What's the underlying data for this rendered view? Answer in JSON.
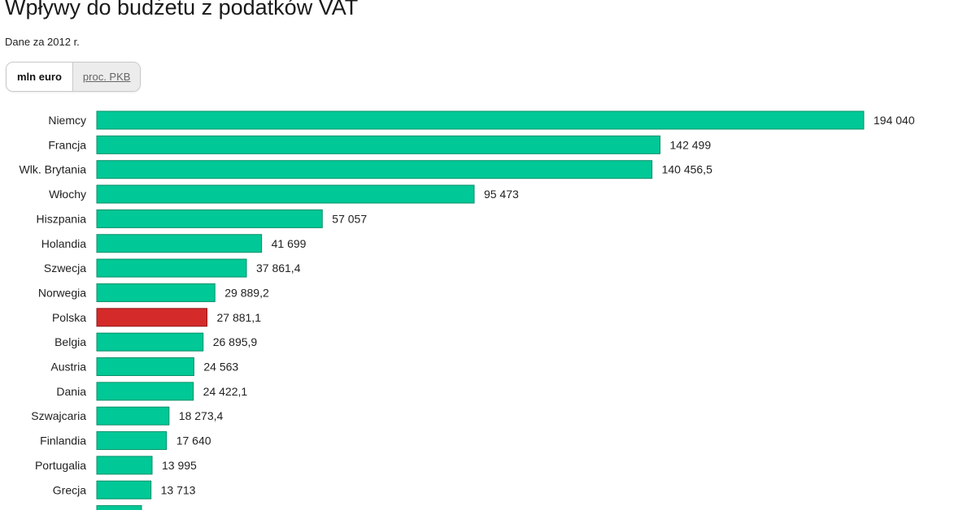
{
  "header": {
    "title": "Wpływy do budżetu z podatków VAT",
    "subtitle": "Dane za 2012 r."
  },
  "toggle": {
    "options": [
      {
        "label": "mln euro",
        "active": true
      },
      {
        "label": "proc. PKB",
        "active": false
      }
    ]
  },
  "colors": {
    "bar": "#00c896",
    "bar_stroke": "#0a8f68",
    "highlight": "#d42a2a",
    "highlight_stroke": "#8f1a1a"
  },
  "chart_data": {
    "type": "bar",
    "orientation": "horizontal",
    "title": "Wpływy do budżetu z podatków VAT",
    "subtitle": "Dane za 2012 r.",
    "highlight": "Polska",
    "categories": [
      "Niemcy",
      "Francja",
      "Wlk. Brytania",
      "Włochy",
      "Hiszpania",
      "Holandia",
      "Szwecja",
      "Norwegia",
      "Polska",
      "Belgia",
      "Austria",
      "Dania",
      "Szwajcaria",
      "Finlandia",
      "Portugalia",
      "Grecja"
    ],
    "values": [
      194040,
      142499,
      140456.5,
      95473,
      57057,
      41699,
      37861.4,
      29889.2,
      27881.1,
      26895.9,
      24563,
      24422.1,
      18273.4,
      17640,
      13995,
      13713
    ],
    "value_labels": [
      "194 040",
      "142 499",
      "140 456,5",
      "95 473",
      "57 057",
      "41 699",
      "37 861,4",
      "29 889,2",
      "27 881,1",
      "26 895,9",
      "24 563",
      "24 422,1",
      "18 273,4",
      "17 640",
      "13 995",
      "13 713"
    ],
    "xlim": [
      0,
      194040
    ],
    "grid": false,
    "legend": "none"
  }
}
